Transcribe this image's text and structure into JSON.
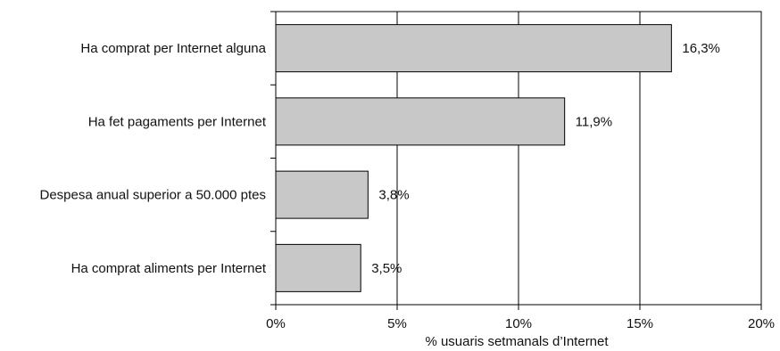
{
  "chart_data": {
    "type": "bar",
    "orientation": "horizontal",
    "categories": [
      "Ha comprat per Internet alguna",
      "Ha fet pagaments per Internet",
      "Despesa anual superior a 50.000 ptes",
      "Ha comprat aliments per Internet"
    ],
    "values": [
      16.3,
      11.9,
      3.8,
      3.5
    ],
    "data_labels": [
      "16,3%",
      "11,9%",
      "3,8%",
      "3,5%"
    ],
    "x_ticks": [
      0,
      5,
      10,
      15,
      20
    ],
    "x_tick_labels": [
      "0%",
      "5%",
      "10%",
      "15%",
      "20%"
    ],
    "xlabel": "% usuaris setmanals d’Internet",
    "ylabel": "",
    "xlim": [
      0,
      20
    ],
    "grid": "vertical",
    "bar_color": "#c8c8c8",
    "bar_stroke": "#000000"
  }
}
